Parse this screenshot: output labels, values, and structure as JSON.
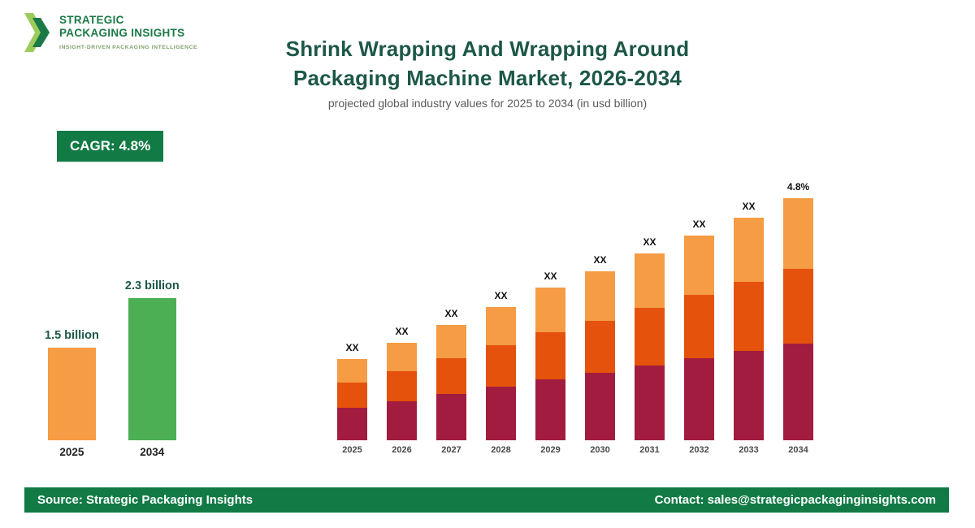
{
  "logo": {
    "line1": "STRATEGIC",
    "line2": "PACKAGING INSIGHTS",
    "tagline": "INSIGHT-DRIVEN PACKAGING INTELLIGENCE"
  },
  "header": {
    "title_line1": "Shrink Wrapping And Wrapping Around",
    "title_line2": "Packaging Machine Market, 2026-2034",
    "subtitle": "projected global industry values for 2025 to 2034 (in usd billion)"
  },
  "cagr_badge": "CAGR: 4.8%",
  "colors": {
    "brand_green": "#117A45",
    "title_green": "#1D5748",
    "bar_maroon": "#A21C3F",
    "bar_dark_orange": "#E4520B",
    "bar_light_orange": "#F59C44",
    "bar_green": "#4CAF54"
  },
  "chart_data": [
    {
      "id": "comparison",
      "type": "bar",
      "title": "",
      "categories": [
        "2025",
        "2034"
      ],
      "values": [
        1.5,
        2.3
      ],
      "value_labels": [
        "1.5 billion",
        "2.3 billion"
      ],
      "bar_colors": [
        "#F59C44",
        "#4CAF54"
      ],
      "ylim": [
        0,
        2.3
      ],
      "unit": "usd billion",
      "legend": "off",
      "grid": "off"
    },
    {
      "id": "projection",
      "type": "bar",
      "stacked": true,
      "categories": [
        "2025",
        "2026",
        "2027",
        "2028",
        "2029",
        "2030",
        "2031",
        "2032",
        "2033",
        "2034"
      ],
      "bar_labels": [
        "XX",
        "XX",
        "XX",
        "XX",
        "XX",
        "XX",
        "XX",
        "XX",
        "XX",
        "4.8%"
      ],
      "series": [
        {
          "name": "segment-bottom",
          "color": "#A21C3F",
          "values": [
            40,
            48,
            57,
            66,
            75,
            83,
            92,
            101,
            110,
            119
          ]
        },
        {
          "name": "segment-middle",
          "color": "#E4520B",
          "values": [
            31,
            37,
            44,
            51,
            58,
            64,
            71,
            78,
            85,
            92
          ]
        },
        {
          "name": "segment-top",
          "color": "#F59C44",
          "values": [
            29,
            35,
            41,
            47,
            55,
            61,
            67,
            73,
            79,
            87
          ]
        }
      ],
      "unit": "relative units (values shown as XX placeholders)",
      "legend": "off",
      "grid": "off"
    }
  ],
  "footer": {
    "source": "Source: Strategic Packaging Insights",
    "contact": "Contact: sales@strategicpackaginginsights.com"
  }
}
